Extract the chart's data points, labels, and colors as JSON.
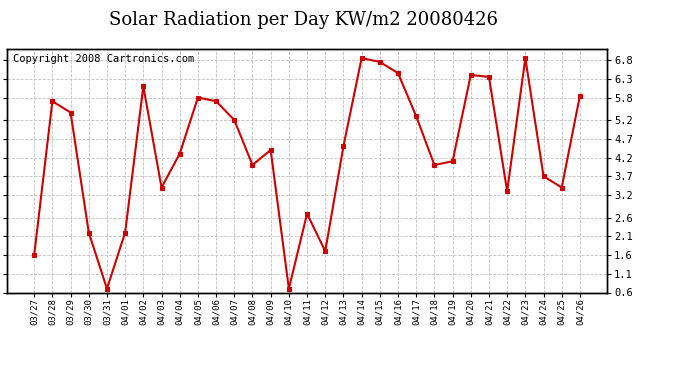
{
  "title": "Solar Radiation per Day KW/m2 20080426",
  "copyright_text": "Copyright 2008 Cartronics.com",
  "dates": [
    "03/27",
    "03/28",
    "03/29",
    "03/30",
    "03/31",
    "04/01",
    "04/02",
    "04/03",
    "04/04",
    "04/05",
    "04/06",
    "04/07",
    "04/08",
    "04/09",
    "04/10",
    "04/11",
    "04/12",
    "04/13",
    "04/14",
    "04/15",
    "04/16",
    "04/17",
    "04/18",
    "04/19",
    "04/20",
    "04/21",
    "04/22",
    "04/23",
    "04/24",
    "04/25",
    "04/26"
  ],
  "values": [
    1.6,
    5.7,
    5.4,
    2.2,
    0.7,
    2.2,
    6.1,
    3.4,
    4.3,
    5.8,
    5.7,
    5.2,
    4.0,
    4.4,
    0.7,
    2.7,
    1.7,
    4.5,
    6.85,
    6.75,
    6.45,
    5.3,
    4.0,
    4.1,
    6.4,
    6.35,
    3.3,
    6.85,
    3.7,
    3.4,
    5.85
  ],
  "line_color": "#cc0000",
  "marker_color": "#cc0000",
  "bg_color": "#ffffff",
  "plot_bg_color": "#ffffff",
  "grid_color": "#c0c0c0",
  "ylim": [
    0.6,
    7.1
  ],
  "yticks": [
    0.6,
    1.1,
    1.6,
    2.1,
    2.6,
    3.2,
    3.7,
    4.2,
    4.7,
    5.2,
    5.8,
    6.3,
    6.8
  ],
  "title_fontsize": 13,
  "copyright_fontsize": 7.5,
  "xtick_fontsize": 6.5,
  "ytick_fontsize": 7.5
}
